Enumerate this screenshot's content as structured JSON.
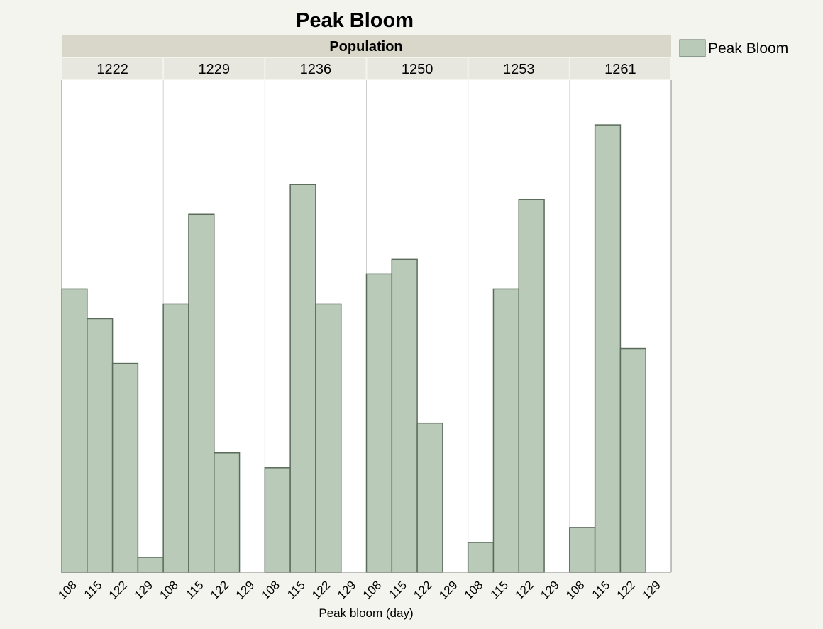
{
  "chart_data": {
    "type": "bar",
    "title": "Peak Bloom",
    "facet_label": "Population",
    "categories": [
      "108",
      "115",
      "122",
      "129"
    ],
    "series_name": "Peak Bloom",
    "color": "#b9cab9",
    "edge_color": "#5b6b5b",
    "panels": [
      {
        "name": "1222",
        "values": [
          19,
          17,
          14,
          1
        ]
      },
      {
        "name": "1229",
        "values": [
          18,
          24,
          8,
          0
        ]
      },
      {
        "name": "1236",
        "values": [
          7,
          26,
          18,
          0
        ]
      },
      {
        "name": "1250",
        "values": [
          20,
          21,
          10,
          0
        ]
      },
      {
        "name": "1253",
        "values": [
          2,
          19,
          25,
          0
        ]
      },
      {
        "name": "1261",
        "values": [
          3,
          30,
          15,
          0
        ]
      }
    ],
    "ylim": [
      0,
      33
    ],
    "xlabel": "Peak bloom (day)"
  }
}
